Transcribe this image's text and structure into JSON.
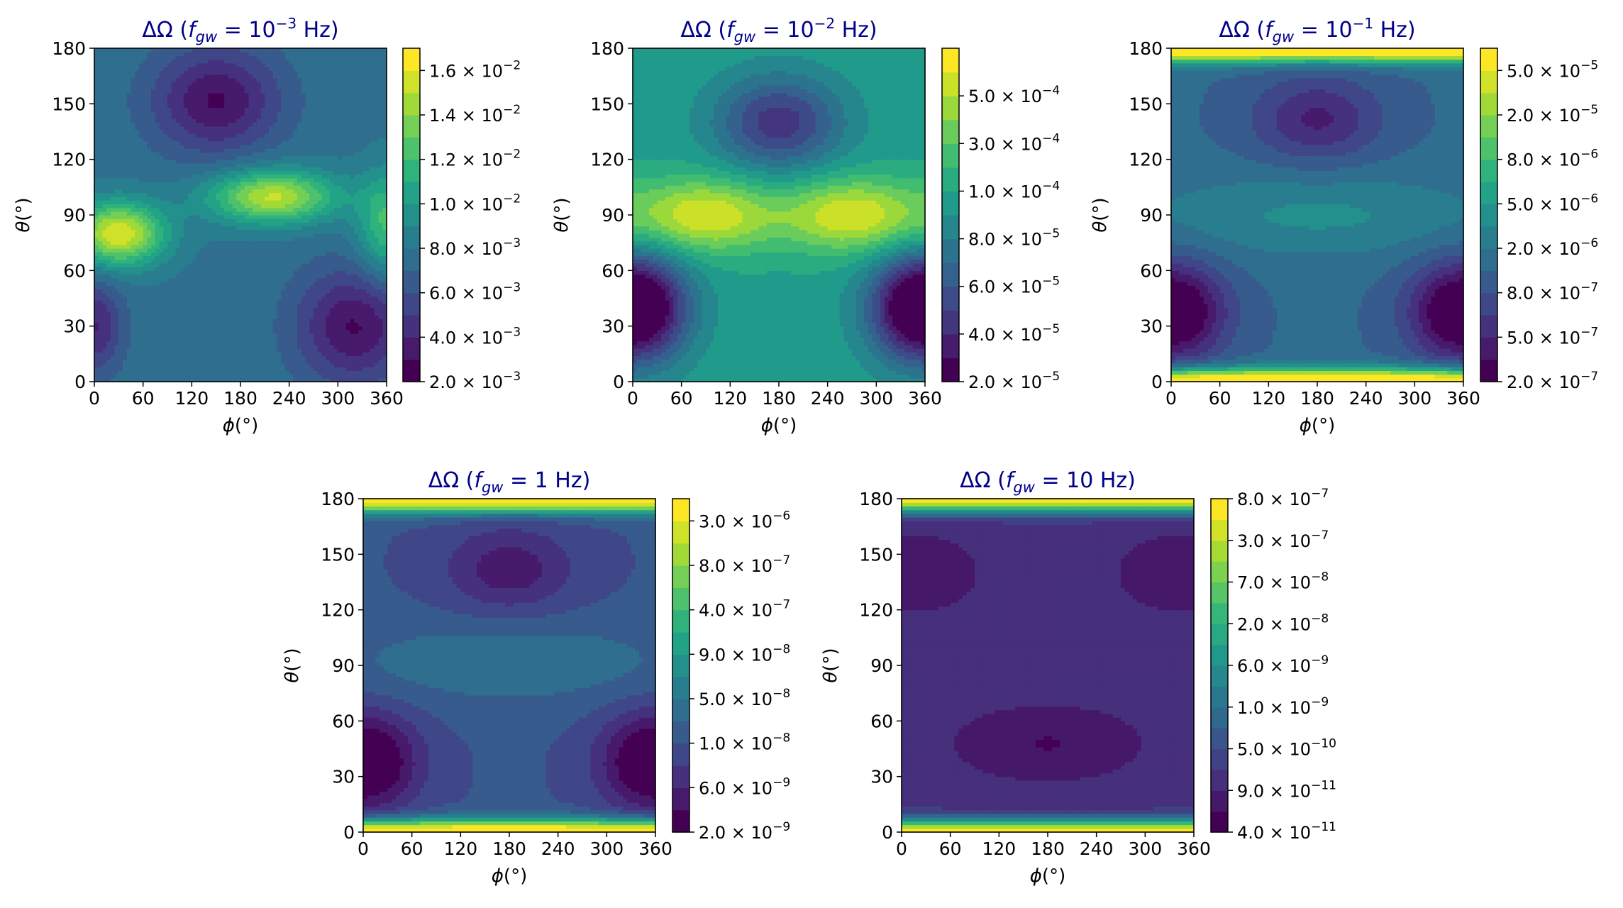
{
  "figure": {
    "colors": {
      "viridis": [
        "#440154",
        "#482878",
        "#3e4989",
        "#31688e",
        "#26828e",
        "#1f9e89",
        "#35b779",
        "#6ece58",
        "#b5de2b",
        "#fde725"
      ],
      "title_color": "#00008b",
      "axis_color": "#000000"
    }
  },
  "chart_data": [
    {
      "type": "heatmap",
      "title": "ΔΩ (f_gw = 10^-3 Hz)",
      "title_parts": {
        "prefix": "ΔΩ (",
        "f": "f",
        "sub": "gw",
        "eq": " = ",
        "base": "10",
        "exp": "−3",
        "suffix": " Hz)"
      },
      "xlabel": "ϕ(°)",
      "ylabel": "θ(°)",
      "xlim": [
        0,
        360
      ],
      "ylim": [
        0,
        180
      ],
      "xticks": [
        "0",
        "60",
        "120",
        "180",
        "240",
        "300",
        "360"
      ],
      "yticks": [
        "0",
        "30",
        "60",
        "90",
        "120",
        "150",
        "180"
      ],
      "colorbar": {
        "scale": "linear",
        "range": [
          0.002,
          0.017
        ],
        "levels": 15,
        "ticks": [
          {
            "value": 0.002,
            "mant": "2.0",
            "exp": "−3"
          },
          {
            "value": 0.004,
            "mant": "4.0",
            "exp": "−3"
          },
          {
            "value": 0.006,
            "mant": "6.0",
            "exp": "−3"
          },
          {
            "value": 0.008,
            "mant": "8.0",
            "exp": "−3"
          },
          {
            "value": 0.01,
            "mant": "1.0",
            "exp": "−2"
          },
          {
            "value": 0.012,
            "mant": "1.2",
            "exp": "−2"
          },
          {
            "value": 0.014,
            "mant": "1.4",
            "exp": "−2"
          },
          {
            "value": 0.016,
            "mant": "1.6",
            "exp": "−2"
          }
        ]
      },
      "field": {
        "base": 0.38,
        "mode": "asym",
        "features": [
          {
            "phi": 150,
            "theta": 152,
            "sphi": 55,
            "stheta": 20,
            "amp": -0.32
          },
          {
            "phi": 320,
            "theta": 30,
            "sphi": 50,
            "stheta": 22,
            "amp": -0.32
          },
          {
            "phi": 0,
            "theta": 30,
            "sphi": 25,
            "stheta": 18,
            "amp": -0.25
          },
          {
            "phi": 360,
            "theta": 85,
            "sphi": 25,
            "stheta": 20,
            "amp": 0.3
          },
          {
            "phi": 30,
            "theta": 80,
            "sphi": 40,
            "stheta": 12,
            "amp": 0.55
          },
          {
            "phi": 220,
            "theta": 100,
            "sphi": 55,
            "stheta": 10,
            "amp": 0.5
          }
        ]
      }
    },
    {
      "type": "heatmap",
      "title": "ΔΩ (f_gw = 10^-2 Hz)",
      "title_parts": {
        "prefix": "ΔΩ (",
        "f": "f",
        "sub": "gw",
        "eq": " = ",
        "base": "10",
        "exp": "−2",
        "suffix": " Hz)"
      },
      "xlabel": "ϕ(°)",
      "ylabel": "θ(°)",
      "xlim": [
        0,
        360
      ],
      "ylim": [
        0,
        180
      ],
      "xticks": [
        "0",
        "60",
        "120",
        "180",
        "240",
        "300",
        "360"
      ],
      "yticks": [
        "0",
        "30",
        "60",
        "90",
        "120",
        "150",
        "180"
      ],
      "colorbar": {
        "scale": "index",
        "levels": 14,
        "ticks": [
          {
            "index": 0,
            "mant": "2.0",
            "exp": "−5"
          },
          {
            "index": 2,
            "mant": "4.0",
            "exp": "−5"
          },
          {
            "index": 4,
            "mant": "6.0",
            "exp": "−5"
          },
          {
            "index": 6,
            "mant": "8.0",
            "exp": "−5"
          },
          {
            "index": 8,
            "mant": "1.0",
            "exp": "−4"
          },
          {
            "index": 10,
            "mant": "3.0",
            "exp": "−4"
          },
          {
            "index": 12,
            "mant": "5.0",
            "exp": "−4"
          }
        ]
      },
      "field": {
        "base": 0.55,
        "mode": "sym",
        "features": [
          {
            "phi": 90,
            "theta": 90,
            "sphi": 60,
            "stheta": 14,
            "amp": 0.38
          },
          {
            "phi": 270,
            "theta": 90,
            "sphi": 60,
            "stheta": 14,
            "amp": 0.38
          },
          {
            "phi": 180,
            "theta": 140,
            "sphi": 55,
            "stheta": 18,
            "amp": -0.38
          },
          {
            "phi": 0,
            "theta": 40,
            "sphi": 45,
            "stheta": 20,
            "amp": -0.38
          },
          {
            "phi": 360,
            "theta": 40,
            "sphi": 45,
            "stheta": 20,
            "amp": -0.38
          }
        ]
      }
    },
    {
      "type": "heatmap",
      "title": "ΔΩ (f_gw = 10^-1 Hz)",
      "title_parts": {
        "prefix": "ΔΩ (",
        "f": "f",
        "sub": "gw",
        "eq": " = ",
        "base": "10",
        "exp": "−1",
        "suffix": " Hz)"
      },
      "xlabel": "ϕ(°)",
      "ylabel": "θ(°)",
      "xlim": [
        0,
        360
      ],
      "ylim": [
        0,
        180
      ],
      "xticks": [
        "0",
        "60",
        "120",
        "180",
        "240",
        "300",
        "360"
      ],
      "yticks": [
        "0",
        "30",
        "60",
        "90",
        "120",
        "150",
        "180"
      ],
      "colorbar": {
        "scale": "index",
        "levels": 15,
        "ticks": [
          {
            "index": 0,
            "mant": "2.0",
            "exp": "−7"
          },
          {
            "index": 2,
            "mant": "5.0",
            "exp": "−7"
          },
          {
            "index": 4,
            "mant": "8.0",
            "exp": "−7"
          },
          {
            "index": 6,
            "mant": "2.0",
            "exp": "−6"
          },
          {
            "index": 8,
            "mant": "5.0",
            "exp": "−6"
          },
          {
            "index": 10,
            "mant": "8.0",
            "exp": "−6"
          },
          {
            "index": 12,
            "mant": "2.0",
            "exp": "−5"
          },
          {
            "index": 14,
            "mant": "5.0",
            "exp": "−5"
          }
        ]
      },
      "field": {
        "base": 0.34,
        "mode": "sym",
        "features": [
          {
            "phi": 180,
            "theta": 90,
            "sphi": 150,
            "stheta": 16,
            "amp": 0.14
          },
          {
            "phi": 180,
            "theta": 142,
            "sphi": 55,
            "stheta": 16,
            "amp": -0.22
          },
          {
            "phi": 0,
            "theta": 38,
            "sphi": 45,
            "stheta": 18,
            "amp": -0.22
          },
          {
            "phi": 360,
            "theta": 38,
            "sphi": 45,
            "stheta": 18,
            "amp": -0.22
          },
          {
            "phi": 180,
            "theta": 0,
            "sphi": 1000,
            "stheta": 5,
            "amp": 0.78
          },
          {
            "phi": 180,
            "theta": 180,
            "sphi": 1000,
            "stheta": 5,
            "amp": 0.78
          }
        ]
      }
    },
    {
      "type": "heatmap",
      "title": "ΔΩ (f_gw = 1 Hz)",
      "title_parts": {
        "prefix": "ΔΩ (",
        "f": "f",
        "sub": "gw",
        "eq": " = ",
        "base": "1",
        "exp": "",
        "suffix": " Hz)"
      },
      "xlabel": "ϕ(°)",
      "ylabel": "θ(°)",
      "xlim": [
        0,
        360
      ],
      "ylim": [
        0,
        180
      ],
      "xticks": [
        "0",
        "60",
        "120",
        "180",
        "240",
        "300",
        "360"
      ],
      "yticks": [
        "0",
        "30",
        "60",
        "90",
        "120",
        "150",
        "180"
      ],
      "colorbar": {
        "scale": "index",
        "levels": 15,
        "ticks": [
          {
            "index": 0,
            "mant": "2.0",
            "exp": "−9"
          },
          {
            "index": 2,
            "mant": "6.0",
            "exp": "−9"
          },
          {
            "index": 4,
            "mant": "1.0",
            "exp": "−8"
          },
          {
            "index": 6,
            "mant": "5.0",
            "exp": "−8"
          },
          {
            "index": 8,
            "mant": "9.0",
            "exp": "−8"
          },
          {
            "index": 10,
            "mant": "4.0",
            "exp": "−7"
          },
          {
            "index": 12,
            "mant": "8.0",
            "exp": "−7"
          },
          {
            "index": 14,
            "mant": "3.0",
            "exp": "−6"
          }
        ]
      },
      "field": {
        "base": 0.27,
        "mode": "sym",
        "features": [
          {
            "phi": 180,
            "theta": 92,
            "sphi": 150,
            "stheta": 16,
            "amp": 0.12
          },
          {
            "phi": 180,
            "theta": 142,
            "sphi": 55,
            "stheta": 16,
            "amp": -0.18
          },
          {
            "phi": 0,
            "theta": 38,
            "sphi": 45,
            "stheta": 18,
            "amp": -0.18
          },
          {
            "phi": 360,
            "theta": 38,
            "sphi": 45,
            "stheta": 18,
            "amp": -0.18
          },
          {
            "phi": 180,
            "theta": 0,
            "sphi": 1000,
            "stheta": 5,
            "amp": 0.8
          },
          {
            "phi": 180,
            "theta": 180,
            "sphi": 1000,
            "stheta": 5,
            "amp": 0.8
          }
        ]
      }
    },
    {
      "type": "heatmap",
      "title": "ΔΩ (f_gw = 10 Hz)",
      "title_parts": {
        "prefix": "ΔΩ (",
        "f": "f",
        "sub": "gw",
        "eq": " = ",
        "base": "10",
        "exp": "",
        "suffix": " Hz)"
      },
      "xlabel": "ϕ(°)",
      "ylabel": "θ(°)",
      "xlim": [
        0,
        360
      ],
      "ylim": [
        0,
        180
      ],
      "xticks": [
        "0",
        "60",
        "120",
        "180",
        "240",
        "300",
        "360"
      ],
      "yticks": [
        "0",
        "30",
        "60",
        "90",
        "120",
        "150",
        "180"
      ],
      "colorbar": {
        "scale": "index",
        "levels": 16,
        "ticks": [
          {
            "index": 0,
            "mant": "4.0",
            "exp": "−11"
          },
          {
            "index": 2,
            "mant": "9.0",
            "exp": "−11"
          },
          {
            "index": 4,
            "mant": "5.0",
            "exp": "−10"
          },
          {
            "index": 6,
            "mant": "1.0",
            "exp": "−9"
          },
          {
            "index": 8,
            "mant": "6.0",
            "exp": "−9"
          },
          {
            "index": 10,
            "mant": "2.0",
            "exp": "−8"
          },
          {
            "index": 12,
            "mant": "7.0",
            "exp": "−8"
          },
          {
            "index": 14,
            "mant": "3.0",
            "exp": "−7"
          },
          {
            "index": 16,
            "mant": "8.0",
            "exp": "−7"
          }
        ]
      },
      "field": {
        "base": 0.16,
        "mode": "sym",
        "features": [
          {
            "phi": 180,
            "theta": 48,
            "sphi": 80,
            "stheta": 14,
            "amp": -0.1
          },
          {
            "phi": 40,
            "theta": 140,
            "sphi": 40,
            "stheta": 14,
            "amp": -0.08
          },
          {
            "phi": 320,
            "theta": 140,
            "sphi": 40,
            "stheta": 14,
            "amp": -0.08
          },
          {
            "phi": 180,
            "theta": 0,
            "sphi": 1000,
            "stheta": 5,
            "amp": 0.85
          },
          {
            "phi": 180,
            "theta": 180,
            "sphi": 1000,
            "stheta": 5,
            "amp": 0.85
          }
        ]
      }
    }
  ]
}
